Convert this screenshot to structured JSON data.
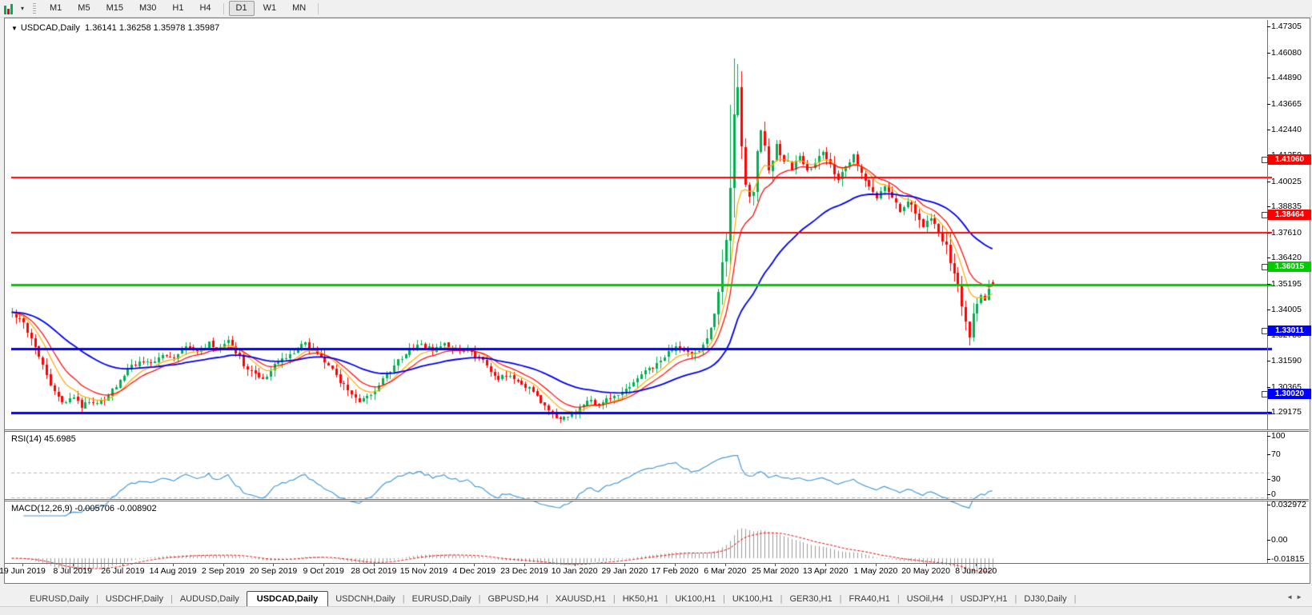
{
  "toolbar": {
    "timeframes": [
      "M1",
      "M5",
      "M15",
      "M30",
      "H1",
      "H4",
      "D1",
      "W1",
      "MN"
    ],
    "active_timeframe": "D1",
    "chart_icon_colors": {
      "up": "#00b050",
      "down": "#ff0000",
      "line": "#3366cc"
    },
    "dropdown_caret": "▾"
  },
  "chart_header": {
    "collapse_icon": "▼",
    "title": "USDCAD,Daily",
    "ohlc": "1.36141 1.36258 1.35978 1.35987"
  },
  "chart_data": {
    "type": "candlestick",
    "symbol": "USDCAD",
    "timeframe": "Daily",
    "open": 1.36141,
    "high": 1.36258,
    "low": 1.35978,
    "close": 1.35987,
    "ylim": [
      1.29175,
      1.47305
    ],
    "grid": false,
    "up_color": "#00b050",
    "down_color": "#ff0000",
    "price_axis_ticks": [
      "1.47305",
      "1.46080",
      "1.44890",
      "1.43665",
      "1.42440",
      "1.41250",
      "1.40025",
      "1.38835",
      "1.37610",
      "1.36420",
      "1.35195",
      "1.34005",
      "1.32780",
      "1.31590",
      "1.30365",
      "1.29175"
    ],
    "x_axis_dates": [
      "19 Jun 2019",
      "8 Jul 2019",
      "26 Jul 2019",
      "14 Aug 2019",
      "2 Sep 2019",
      "20 Sep 2019",
      "9 Oct 2019",
      "28 Oct 2019",
      "15 Nov 2019",
      "4 Dec 2019",
      "23 Dec 2019",
      "10 Jan 2020",
      "29 Jan 2020",
      "17 Feb 2020",
      "6 Mar 2020",
      "25 Mar 2020",
      "13 Apr 2020",
      "1 May 2020",
      "20 May 2020",
      "8 Jun 2020"
    ],
    "horizontal_lines": [
      {
        "price": 1.4106,
        "label": "1.41060",
        "color": "#ff0000",
        "width": 2
      },
      {
        "price": 1.38464,
        "label": "1.38464",
        "color": "#ff0000",
        "width": 2
      },
      {
        "price": 1.36015,
        "label": "1.36015",
        "color": "#00cc00",
        "width": 3
      },
      {
        "price": 1.33011,
        "label": "1.33011",
        "color": "#0000ff",
        "width": 3
      },
      {
        "price": 1.3002,
        "label": "1.30020",
        "color": "#0000ff",
        "width": 3
      }
    ],
    "moving_averages": [
      {
        "period": 8,
        "method": "ema",
        "color": "#ffaa00",
        "width": 1.2
      },
      {
        "period": 13,
        "method": "ema",
        "color": "#ff0000",
        "width": 1.2
      },
      {
        "period": 40,
        "method": "ema",
        "color": "#0000ee",
        "width": 1.8
      }
    ],
    "candle_count": 255,
    "first_label_bar": 4,
    "bars_per_label": 13,
    "price_anchors": [
      [
        0,
        1.3475
      ],
      [
        2,
        1.344
      ],
      [
        4,
        1.339
      ],
      [
        6,
        1.331
      ],
      [
        8,
        1.3215
      ],
      [
        10,
        1.312
      ],
      [
        12,
        1.307
      ],
      [
        14,
        1.3042
      ],
      [
        16,
        1.3072
      ],
      [
        18,
        1.3032
      ],
      [
        20,
        1.3058
      ],
      [
        22,
        1.3036
      ],
      [
        24,
        1.3068
      ],
      [
        26,
        1.3108
      ],
      [
        28,
        1.3148
      ],
      [
        30,
        1.3198
      ],
      [
        33,
        1.3248
      ],
      [
        36,
        1.3228
      ],
      [
        39,
        1.3278
      ],
      [
        42,
        1.3258
      ],
      [
        45,
        1.3308
      ],
      [
        48,
        1.3286
      ],
      [
        51,
        1.3328
      ],
      [
        54,
        1.3308
      ],
      [
        56,
        1.3344
      ],
      [
        58,
        1.329
      ],
      [
        60,
        1.3232
      ],
      [
        63,
        1.3176
      ],
      [
        65,
        1.316
      ],
      [
        68,
        1.3224
      ],
      [
        71,
        1.3264
      ],
      [
        74,
        1.3304
      ],
      [
        76,
        1.3334
      ],
      [
        78,
        1.33
      ],
      [
        80,
        1.3262
      ],
      [
        82,
        1.3222
      ],
      [
        84,
        1.3172
      ],
      [
        86,
        1.313
      ],
      [
        88,
        1.3082
      ],
      [
        90,
        1.3056
      ],
      [
        92,
        1.3076
      ],
      [
        94,
        1.3112
      ],
      [
        96,
        1.316
      ],
      [
        98,
        1.3202
      ],
      [
        100,
        1.3246
      ],
      [
        103,
        1.329
      ],
      [
        106,
        1.332
      ],
      [
        109,
        1.33
      ],
      [
        112,
        1.3322
      ],
      [
        115,
        1.3296
      ],
      [
        118,
        1.3306
      ],
      [
        120,
        1.3272
      ],
      [
        122,
        1.3242
      ],
      [
        124,
        1.3202
      ],
      [
        126,
        1.3166
      ],
      [
        129,
        1.3176
      ],
      [
        132,
        1.3142
      ],
      [
        134,
        1.3112
      ],
      [
        136,
        1.3072
      ],
      [
        138,
        1.3032
      ],
      [
        140,
        1.2992
      ],
      [
        142,
        1.2966
      ],
      [
        144,
        1.2986
      ],
      [
        146,
        1.3012
      ],
      [
        148,
        1.3042
      ],
      [
        150,
        1.3056
      ],
      [
        152,
        1.3042
      ],
      [
        154,
        1.3062
      ],
      [
        156,
        1.3082
      ],
      [
        158,
        1.3102
      ],
      [
        160,
        1.3132
      ],
      [
        162,
        1.3162
      ],
      [
        164,
        1.3192
      ],
      [
        166,
        1.3222
      ],
      [
        168,
        1.3256
      ],
      [
        170,
        1.3286
      ],
      [
        172,
        1.3306
      ],
      [
        174,
        1.3292
      ],
      [
        176,
        1.3272
      ],
      [
        178,
        1.3296
      ],
      [
        180,
        1.3342
      ],
      [
        181,
        1.3392
      ],
      [
        182,
        1.3442
      ],
      [
        183,
        1.3532
      ],
      [
        184,
        1.3662
      ],
      [
        185,
        1.3832
      ],
      [
        186,
        1.4062
      ],
      [
        187,
        1.4402
      ],
      [
        188,
        1.4562
      ],
      [
        189,
        1.4282
      ],
      [
        190,
        1.4122
      ],
      [
        191,
        1.3992
      ],
      [
        192,
        1.4082
      ],
      [
        193,
        1.4202
      ],
      [
        194,
        1.4322
      ],
      [
        195,
        1.4242
      ],
      [
        196,
        1.4122
      ],
      [
        197,
        1.4182
      ],
      [
        198,
        1.4262
      ],
      [
        199,
        1.4192
      ],
      [
        200,
        1.4232
      ],
      [
        202,
        1.4152
      ],
      [
        204,
        1.4202
      ],
      [
        206,
        1.4132
      ],
      [
        208,
        1.4182
      ],
      [
        210,
        1.4222
      ],
      [
        212,
        1.4162
      ],
      [
        214,
        1.4102
      ],
      [
        216,
        1.4162
      ],
      [
        218,
        1.4202
      ],
      [
        220,
        1.4122
      ],
      [
        222,
        1.4062
      ],
      [
        224,
        1.4002
      ],
      [
        226,
        1.4072
      ],
      [
        228,
        1.4012
      ],
      [
        230,
        1.3952
      ],
      [
        232,
        1.4002
      ],
      [
        234,
        1.3942
      ],
      [
        236,
        1.3882
      ],
      [
        238,
        1.3922
      ],
      [
        240,
        1.3852
      ],
      [
        242,
        1.3782
      ],
      [
        243,
        1.3722
      ],
      [
        244,
        1.3652
      ],
      [
        245,
        1.3582
      ],
      [
        246,
        1.3502
      ],
      [
        247,
        1.3422
      ],
      [
        248,
        1.3372
      ],
      [
        249,
        1.3452
      ],
      [
        250,
        1.3532
      ],
      [
        251,
        1.3562
      ],
      [
        252,
        1.3536
      ],
      [
        253,
        1.3572
      ],
      [
        254,
        1.3599
      ]
    ],
    "extremes": {
      "142": {
        "low": 1.2951
      },
      "186": {
        "high": 1.445
      },
      "187": {
        "high": 1.4668
      },
      "188": {
        "high": 1.4642
      },
      "248": {
        "low": 1.3317
      }
    },
    "rsi": {
      "label": "RSI(14) 45.6985",
      "period": 14,
      "value": 45.6985,
      "color": "#4799d6",
      "levels": [
        70,
        30
      ],
      "axis_ticks": [
        {
          "label": "100",
          "v": 100
        },
        {
          "label": "70",
          "v": 70
        },
        {
          "label": "30",
          "v": 30
        },
        {
          "label": "0",
          "v": 0
        }
      ]
    },
    "macd": {
      "label": "MACD(12,26,9) -0.005706 -0.008902",
      "fast": 12,
      "slow": 26,
      "signal": 9,
      "macd_value": -0.005706,
      "signal_value": -0.008902,
      "hist_color": "#9a9a9a",
      "signal_color": "#ee0000",
      "axis_ticks": [
        {
          "label": "0.032972",
          "v": 0.032972
        },
        {
          "label": "0.00",
          "v": 0
        },
        {
          "label": "-0.01815",
          "v": -0.01815
        }
      ],
      "max": 0.032972,
      "min": -0.01815
    }
  },
  "tabs": {
    "items": [
      "EURUSD,Daily",
      "USDCHF,Daily",
      "AUDUSD,Daily",
      "USDCAD,Daily",
      "USDCNH,Daily",
      "EURUSD,Daily",
      "GBPUSD,H4",
      "XAUUSD,H1",
      "HK50,H1",
      "UK100,H1",
      "UK100,H1",
      "GER30,H1",
      "FRA40,H1",
      "USOil,H4",
      "USDJPY,H1",
      "DJ30,Daily"
    ],
    "active_index": 3,
    "scroll_left_icon": "◄",
    "scroll_right_icon": "►"
  }
}
